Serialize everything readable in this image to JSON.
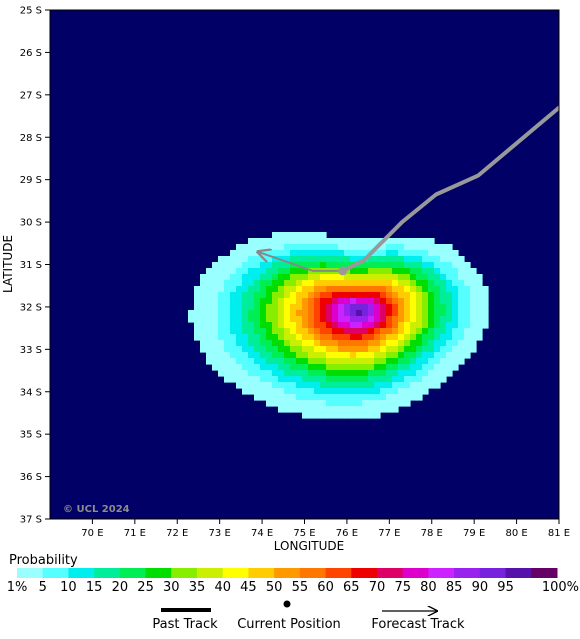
{
  "map": {
    "ocean_color": "#000066",
    "x_axis_title": "LONGITUDE",
    "y_axis_title": "LATITUDE",
    "copyright": "© UCL 2024",
    "x_ticks": [
      {
        "value": 70,
        "label": "70 E"
      },
      {
        "value": 71,
        "label": "71 E"
      },
      {
        "value": 72,
        "label": "72 E"
      },
      {
        "value": 73,
        "label": "73 E"
      },
      {
        "value": 74,
        "label": "74 E"
      },
      {
        "value": 75,
        "label": "75 E"
      },
      {
        "value": 76,
        "label": "76 E"
      },
      {
        "value": 77,
        "label": "77 E"
      },
      {
        "value": 78,
        "label": "78 E"
      },
      {
        "value": 79,
        "label": "79 E"
      },
      {
        "value": 80,
        "label": "80 E"
      },
      {
        "value": 81,
        "label": "81 E"
      }
    ],
    "y_ticks": [
      {
        "value": 25,
        "label": "25 S"
      },
      {
        "value": 26,
        "label": "26 S"
      },
      {
        "value": 27,
        "label": "27 S"
      },
      {
        "value": 28,
        "label": "28 S"
      },
      {
        "value": 29,
        "label": "29 S"
      },
      {
        "value": 30,
        "label": "30 S"
      },
      {
        "value": 31,
        "label": "31 S"
      },
      {
        "value": 32,
        "label": "32 S"
      },
      {
        "value": 33,
        "label": "33 S"
      },
      {
        "value": 34,
        "label": "34 S"
      },
      {
        "value": 35,
        "label": "35 S"
      },
      {
        "value": 36,
        "label": "36 S"
      },
      {
        "value": 37,
        "label": "37 S"
      }
    ],
    "lon_range": [
      69,
      81
    ],
    "lat_range": [
      25,
      37
    ],
    "past_track": [
      [
        81.0,
        27.3
      ],
      [
        79.1,
        28.9
      ],
      [
        78.1,
        29.35
      ],
      [
        77.3,
        30.0
      ],
      [
        76.4,
        30.9
      ],
      [
        75.9,
        31.15
      ]
    ],
    "forecast_track": [
      [
        75.9,
        31.15
      ],
      [
        75.2,
        31.15
      ],
      [
        73.9,
        30.7
      ]
    ],
    "current_position": [
      75.9,
      31.15
    ],
    "probability_field": {
      "center": [
        76.3,
        32.1
      ],
      "outer_extent_lon": [
        72.6,
        79.3
      ],
      "outer_extent_lat": [
        30.3,
        34.8
      ]
    }
  },
  "legend": {
    "title": "Probability",
    "levels": [
      {
        "label": "1%",
        "color": "#99ffff"
      },
      {
        "label": "5",
        "color": "#55ffff"
      },
      {
        "label": "10",
        "color": "#00eeee"
      },
      {
        "label": "15",
        "color": "#00ee99"
      },
      {
        "label": "20",
        "color": "#00ee55"
      },
      {
        "label": "25",
        "color": "#00dd00"
      },
      {
        "label": "30",
        "color": "#88ee00"
      },
      {
        "label": "35",
        "color": "#ccee00"
      },
      {
        "label": "40",
        "color": "#ffff00"
      },
      {
        "label": "45",
        "color": "#ffcc00"
      },
      {
        "label": "50",
        "color": "#ff9900"
      },
      {
        "label": "55",
        "color": "#ff7700"
      },
      {
        "label": "60",
        "color": "#ff4400"
      },
      {
        "label": "65",
        "color": "#ee0000"
      },
      {
        "label": "70",
        "color": "#dd0066"
      },
      {
        "label": "75",
        "color": "#dd00cc"
      },
      {
        "label": "80",
        "color": "#cc22ff"
      },
      {
        "label": "85",
        "color": "#9922ee"
      },
      {
        "label": "90",
        "color": "#7722dd"
      },
      {
        "label": "95",
        "color": "#5511aa"
      },
      {
        "label": "100%",
        "color": "#660066"
      }
    ],
    "past_track_label": "Past Track",
    "current_position_label": "Current Position",
    "forecast_track_label": "Forecast Track"
  }
}
